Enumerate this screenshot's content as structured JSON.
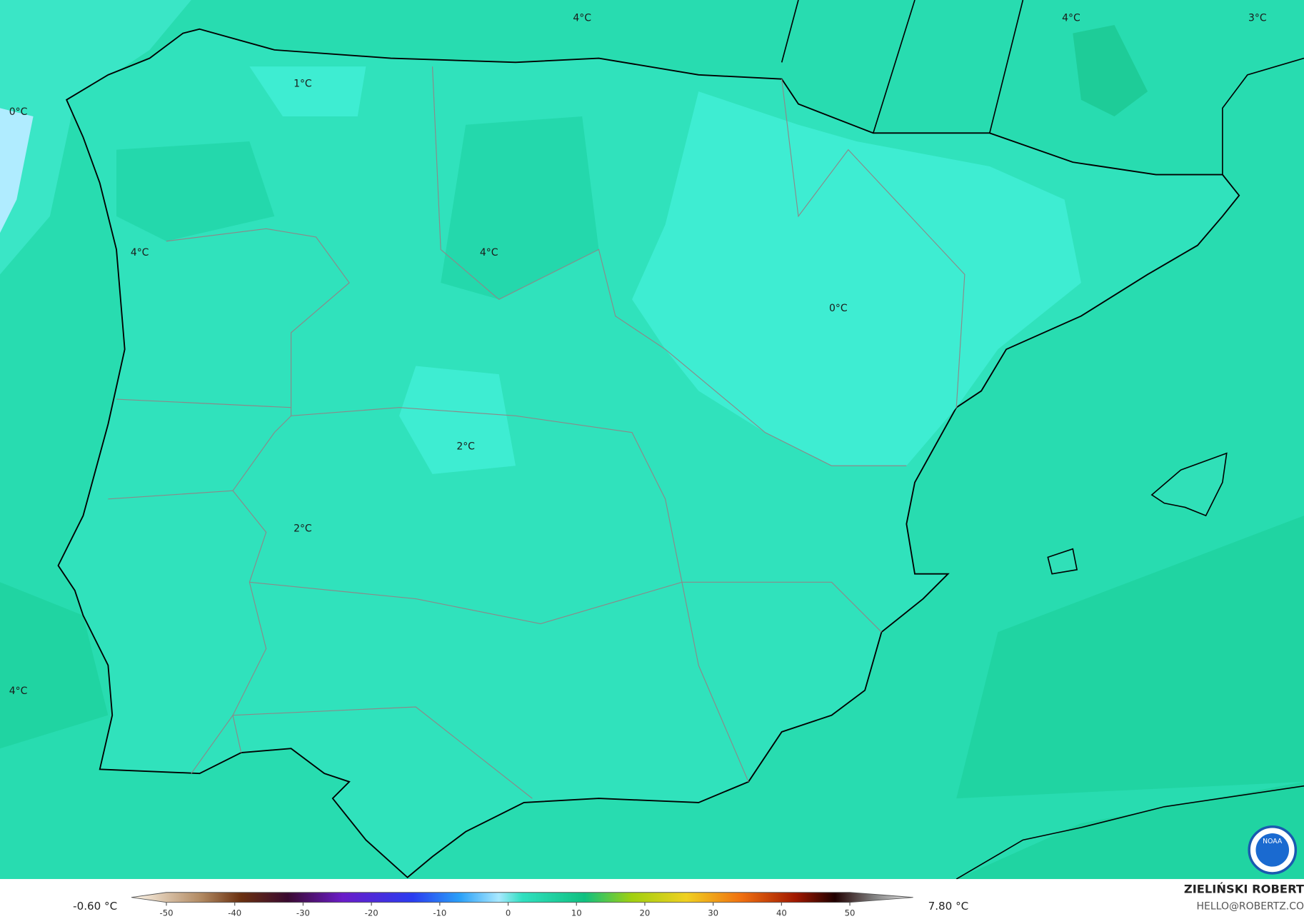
{
  "map": {
    "contour_labels": [
      "4°C",
      "4°C",
      "3°C",
      "1°C",
      "0°C",
      "4°C",
      "4°C",
      "0°C",
      "2°C",
      "2°C",
      "4°C"
    ],
    "colorbar": {
      "lim": [
        -55,
        55
      ],
      "ticks": [
        -50,
        -40,
        -30,
        -20,
        -10,
        0,
        10,
        20,
        30,
        40,
        50
      ]
    },
    "min_label": "-0.60 °C",
    "max_label": "7.80 °C",
    "credit": {
      "name": "ZIELIŃSKI ROBERT",
      "email": "HELLO@ROBERTZ.CO"
    },
    "logo": "NOAA"
  }
}
